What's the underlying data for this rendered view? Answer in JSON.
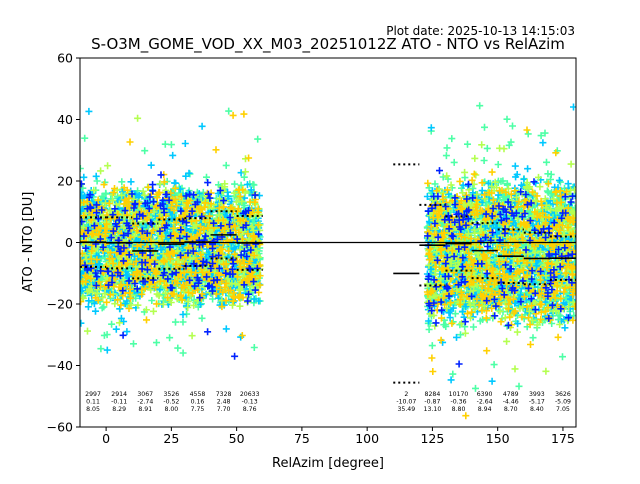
{
  "chart_data": {
    "type": "scatter",
    "plot_date": "Plot date: 2025-10-13 14:15:03",
    "title": "S-O3M_GOME_VOD_XX_M03_20251012Z ATO - NTO vs RelAzim",
    "xlabel": "RelAzim [degree]",
    "ylabel": "ATO - NTO [DU]",
    "xlim": [
      -10,
      180
    ],
    "ylim": [
      -60,
      60
    ],
    "xticks": [
      0,
      25,
      50,
      75,
      100,
      125,
      150,
      175
    ],
    "yticks": [
      -60,
      -40,
      -20,
      0,
      20,
      40,
      60
    ],
    "grid": false,
    "reference_line": 0,
    "marker": "plus",
    "scatter_clusters": [
      {
        "x_range": [
          -10,
          59
        ],
        "y_core": [
          -22,
          20
        ],
        "y_extreme": [
          -37,
          44
        ]
      },
      {
        "x_range": [
          123,
          180
        ],
        "y_core": [
          -28,
          22
        ],
        "y_extreme": [
          -57,
          47
        ]
      }
    ],
    "colormap": [
      "#0022ff",
      "#00c8ff",
      "#4dffa6",
      "#b4ff50",
      "#ffd000"
    ],
    "bins": [
      {
        "x0": -10,
        "x1": 0,
        "count": "2997",
        "mean": "0.11",
        "std": "8.05",
        "mean_v": 0.11,
        "std_v": 8.05
      },
      {
        "x0": 0,
        "x1": 10,
        "count": "2914",
        "mean": "-0.11",
        "std": "8.29",
        "mean_v": -0.11,
        "std_v": 8.29
      },
      {
        "x0": 10,
        "x1": 20,
        "count": "3067",
        "mean": "-2.74",
        "std": "8.91",
        "mean_v": -2.74,
        "std_v": 8.91
      },
      {
        "x0": 20,
        "x1": 30,
        "count": "3526",
        "mean": "-0.52",
        "std": "8.00",
        "mean_v": -0.52,
        "std_v": 8.0
      },
      {
        "x0": 30,
        "x1": 40,
        "count": "4558",
        "mean": "0.16",
        "std": "7.75",
        "mean_v": 0.16,
        "std_v": 7.75
      },
      {
        "x0": 40,
        "x1": 50,
        "count": "7328",
        "mean": "2.48",
        "std": "7.70",
        "mean_v": 2.48,
        "std_v": 7.7
      },
      {
        "x0": 50,
        "x1": 60,
        "count": "20633",
        "mean": "-0.13",
        "std": "8.76",
        "mean_v": -0.13,
        "std_v": 8.76
      },
      {
        "x0": 110,
        "x1": 120,
        "count": "2",
        "mean": "-10.07",
        "std": "35.49",
        "mean_v": -10.07,
        "std_v": 35.49
      },
      {
        "x0": 120,
        "x1": 130,
        "count": "8284",
        "mean": "-0.87",
        "std": "13.10",
        "mean_v": -0.87,
        "std_v": 13.1
      },
      {
        "x0": 130,
        "x1": 140,
        "count": "10170",
        "mean": "-0.36",
        "std": "8.80",
        "mean_v": -0.36,
        "std_v": 8.8
      },
      {
        "x0": 140,
        "x1": 150,
        "count": "6390",
        "mean": "-2.64",
        "std": "8.94",
        "mean_v": -2.64,
        "std_v": 8.94
      },
      {
        "x0": 150,
        "x1": 160,
        "count": "4789",
        "mean": "-4.46",
        "std": "8.70",
        "mean_v": -4.46,
        "std_v": 8.7
      },
      {
        "x0": 160,
        "x1": 170,
        "count": "3993",
        "mean": "-5.17",
        "std": "8.40",
        "mean_v": -5.17,
        "std_v": 8.4
      },
      {
        "x0": 170,
        "x1": 180,
        "count": "3626",
        "mean": "-5.09",
        "std": "7.05",
        "mean_v": -5.09,
        "std_v": 7.05
      }
    ]
  }
}
